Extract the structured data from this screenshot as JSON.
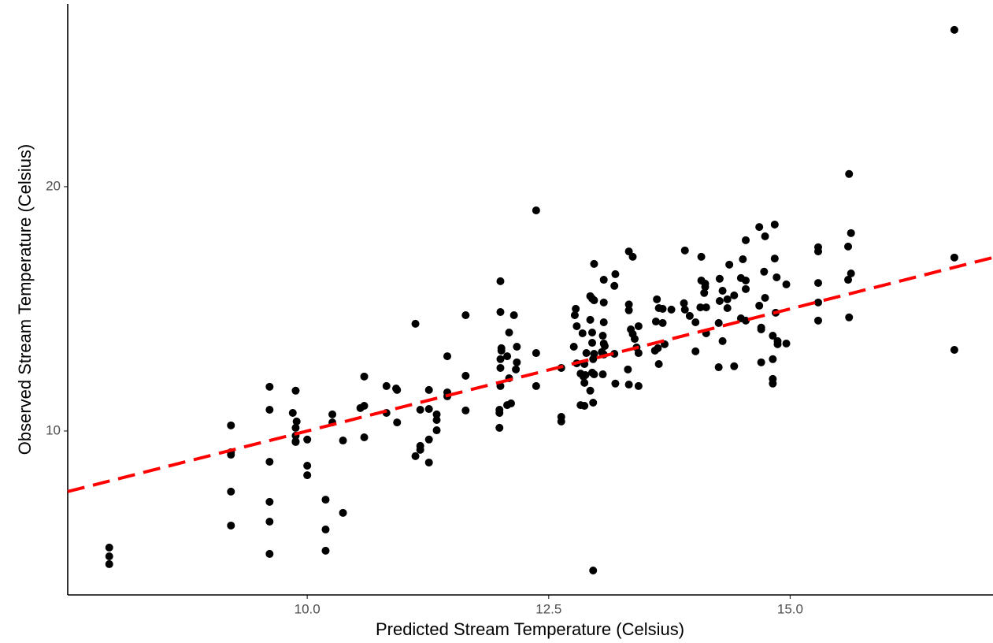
{
  "chart_data": {
    "type": "scatter",
    "x_label": "Predicted Stream Temperature (Celsius)",
    "y_label": "Observed Stream Temperature (Celsius)",
    "color": "#000000",
    "x": [
      7.95,
      7.95,
      7.95,
      9.21,
      9.21,
      9.21,
      9.21,
      9.21,
      9.61,
      9.61,
      9.61,
      9.61,
      9.61,
      9.61,
      9.88,
      9.85,
      9.89,
      9.88,
      9.88,
      9.88,
      9.88,
      10.0,
      10.0,
      10.0,
      10.19,
      10.19,
      10.19,
      10.26,
      10.26,
      10.37,
      10.37,
      10.55,
      10.59,
      10.59,
      10.59,
      10.82,
      10.82,
      10.92,
      10.93,
      10.93,
      11.12,
      11.12,
      11.17,
      11.17,
      11.17,
      11.26,
      11.26,
      11.26,
      11.26,
      11.34,
      11.34,
      11.34,
      11.45,
      11.45,
      11.45,
      11.64,
      11.64,
      11.64,
      12.0,
      12.0,
      12.01,
      12.01,
      12.0,
      12.0,
      12.0,
      11.99,
      11.99,
      11.99,
      12.09,
      12.17,
      12.07,
      12.17,
      12.16,
      12.09,
      12.11,
      12.07,
      12.14,
      12.37,
      12.37,
      12.37,
      12.63,
      12.63,
      12.63,
      12.78,
      12.77,
      12.79,
      12.76,
      12.79,
      12.85,
      12.89,
      12.83,
      12.87,
      12.88,
      12.86,
      12.87,
      12.83,
      12.87,
      12.97,
      12.93,
      12.95,
      12.97,
      12.93,
      12.95,
      12.95,
      12.97,
      12.96,
      12.95,
      12.97,
      12.93,
      12.96,
      12.96,
      13.07,
      13.07,
      13.07,
      13.06,
      13.07,
      13.08,
      13.05,
      13.07,
      13.06,
      13.19,
      13.18,
      13.18,
      13.19,
      13.33,
      13.37,
      13.33,
      13.33,
      13.35,
      13.37,
      13.39,
      13.32,
      13.33,
      13.43,
      13.41,
      13.43,
      13.43,
      13.62,
      13.64,
      13.61,
      13.63,
      13.6,
      13.64,
      13.68,
      13.68,
      13.7,
      13.77,
      13.91,
      13.9,
      13.91,
      13.96,
      14.08,
      14.08,
      14.12,
      14.11,
      14.07,
      14.02,
      14.02,
      14.12,
      14.13,
      14.13,
      14.27,
      14.3,
      14.27,
      14.26,
      14.3,
      14.26,
      14.37,
      14.35,
      14.35,
      14.54,
      14.51,
      14.49,
      14.54,
      14.54,
      14.42,
      14.49,
      14.54,
      14.42,
      14.68,
      14.74,
      14.73,
      14.74,
      14.68,
      14.7,
      14.7,
      14.7,
      14.84,
      14.84,
      14.86,
      14.85,
      14.82,
      14.87,
      14.87,
      14.82,
      14.82,
      14.82,
      14.96,
      14.96,
      15.29,
      15.29,
      15.29,
      15.29,
      15.29,
      15.61,
      15.63,
      15.6,
      15.63,
      15.6,
      15.61,
      16.7,
      16.7,
      16.7
    ],
    "y": [
      5.23,
      4.87,
      4.55,
      10.23,
      9.13,
      9.03,
      7.52,
      6.13,
      11.81,
      10.87,
      8.74,
      7.1,
      6.29,
      4.97,
      11.65,
      10.74,
      10.39,
      10.13,
      9.81,
      9.58,
      9.55,
      9.65,
      8.58,
      8.19,
      7.19,
      5.97,
      5.1,
      10.68,
      10.35,
      9.61,
      6.65,
      10.94,
      11.03,
      12.23,
      9.74,
      11.84,
      10.74,
      11.74,
      11.68,
      10.35,
      14.39,
      8.97,
      10.87,
      9.39,
      9.23,
      11.68,
      10.9,
      9.65,
      8.71,
      10.68,
      10.45,
      10.03,
      13.06,
      11.58,
      11.42,
      14.74,
      12.26,
      10.84,
      16.13,
      14.87,
      13.39,
      13.29,
      12.94,
      12.58,
      11.84,
      10.87,
      10.74,
      10.13,
      14.03,
      13.45,
      13.06,
      12.81,
      12.52,
      12.16,
      11.13,
      11.06,
      14.74,
      19.03,
      13.19,
      11.84,
      12.58,
      10.58,
      10.39,
      15.0,
      14.74,
      14.29,
      13.45,
      12.77,
      14.0,
      13.19,
      12.35,
      12.74,
      12.29,
      12.23,
      11.97,
      11.06,
      11.03,
      16.84,
      15.52,
      15.42,
      15.35,
      14.55,
      14.03,
      13.61,
      13.16,
      12.94,
      12.39,
      12.32,
      11.65,
      11.16,
      4.29,
      16.19,
      15.26,
      14.45,
      13.9,
      13.58,
      13.48,
      13.23,
      13.13,
      12.32,
      16.42,
      15.94,
      13.16,
      11.94,
      17.35,
      17.13,
      15.18,
      14.94,
      14.16,
      13.97,
      13.77,
      12.52,
      11.9,
      14.29,
      13.42,
      13.19,
      11.84,
      15.39,
      15.03,
      14.48,
      13.39,
      13.29,
      12.74,
      15.0,
      14.42,
      13.55,
      14.97,
      17.39,
      15.23,
      14.97,
      14.71,
      17.13,
      16.16,
      16.03,
      15.65,
      15.06,
      14.45,
      13.26,
      15.9,
      15.06,
      14.0,
      16.23,
      15.74,
      15.32,
      14.42,
      13.68,
      12.61,
      16.81,
      15.39,
      15.03,
      17.81,
      17.03,
      16.26,
      16.16,
      15.81,
      15.55,
      14.61,
      14.52,
      12.65,
      18.35,
      17.97,
      16.52,
      15.45,
      15.13,
      14.23,
      14.16,
      12.81,
      18.45,
      17.06,
      16.29,
      14.84,
      13.9,
      13.68,
      13.55,
      12.94,
      12.13,
      11.94,
      16.0,
      13.58,
      17.52,
      17.35,
      16.06,
      15.26,
      14.52,
      20.52,
      18.1,
      17.55,
      16.45,
      16.19,
      14.65,
      26.42,
      17.1,
      13.32
    ],
    "reference_line": {
      "slope": 1,
      "intercept": 0,
      "color": "#ff0000",
      "dashed": true
    },
    "xlim": [
      7.52,
      17.1
    ],
    "ylim": [
      3.29,
      27.48
    ],
    "xticks": [
      {
        "value": 10,
        "label": "10.0"
      },
      {
        "value": 12.5,
        "label": "12.5"
      },
      {
        "value": 15,
        "label": "15.0"
      }
    ],
    "yticks": [
      10,
      20
    ],
    "grid": false
  }
}
